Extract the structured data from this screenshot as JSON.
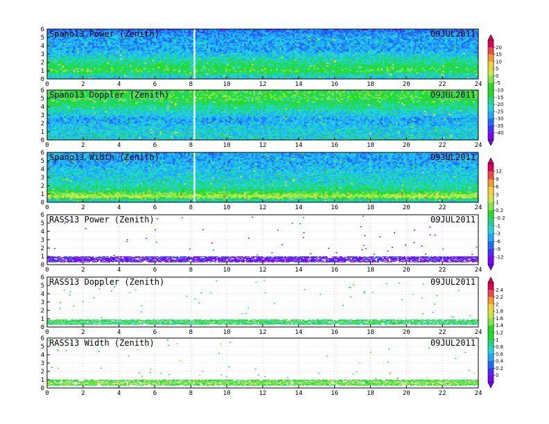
{
  "chart_data": [
    {
      "type": "heatmap",
      "title": "Spano13 Power (Zenith)",
      "date": "09JUL2011",
      "x_ticks": [
        "0",
        "2",
        "4",
        "6",
        "8",
        "10",
        "12",
        "14",
        "16",
        "18",
        "20",
        "22",
        "24"
      ],
      "y_ticks": [
        "0",
        "1",
        "2",
        "3",
        "4",
        "5",
        "6"
      ],
      "xlim": [
        0,
        24
      ],
      "ylim": [
        0,
        6
      ],
      "gap_hour": 8.2,
      "cover": [
        0,
        6
      ],
      "profile": [
        {
          "y": 0.3,
          "level": 4
        },
        {
          "y": 1.0,
          "level": 6
        },
        {
          "y": 2.0,
          "level": 5
        },
        {
          "y": 3.5,
          "level": 3
        },
        {
          "y": 5.0,
          "level": 3
        },
        {
          "y": 6.0,
          "level": 2
        }
      ],
      "colorbar": {
        "group": 1,
        "levels": [
          "20",
          "15",
          "10",
          "5",
          "0",
          "-5",
          "-10",
          "-15",
          "-20",
          "-25",
          "-30",
          "-35",
          "-40"
        ]
      }
    },
    {
      "type": "heatmap",
      "title": "Spano13 Doppler (Zenith)",
      "date": "09JUL2011",
      "x_ticks": [
        "0",
        "2",
        "4",
        "6",
        "8",
        "10",
        "12",
        "14",
        "16",
        "18",
        "20",
        "22",
        "24"
      ],
      "y_ticks": [
        "0",
        "1",
        "2",
        "3",
        "4",
        "5",
        "6"
      ],
      "xlim": [
        0,
        24
      ],
      "ylim": [
        0,
        6
      ],
      "gap_hour": 8.2,
      "cover": [
        0,
        6
      ],
      "profile": [
        {
          "y": 0.3,
          "level": 4
        },
        {
          "y": 1.0,
          "level": 4
        },
        {
          "y": 2.5,
          "level": 3
        },
        {
          "y": 4.0,
          "level": 5
        },
        {
          "y": 5.0,
          "level": 6
        },
        {
          "y": 6.0,
          "level": 6
        }
      ],
      "colorbar": {
        "group": 1,
        "levels": []
      }
    },
    {
      "type": "heatmap",
      "title": "Spano13 Width (Zenith)",
      "date": "09JUL2011",
      "x_ticks": [
        "0",
        "2",
        "4",
        "6",
        "8",
        "10",
        "12",
        "14",
        "16",
        "18",
        "20",
        "22",
        "24"
      ],
      "y_ticks": [
        "0",
        "1",
        "2",
        "3",
        "4",
        "5",
        "6"
      ],
      "xlim": [
        0,
        24
      ],
      "ylim": [
        0,
        6
      ],
      "gap_hour": 8.2,
      "cover": [
        0,
        6
      ],
      "profile": [
        {
          "y": 0.2,
          "level": 4
        },
        {
          "y": 0.7,
          "level": 8
        },
        {
          "y": 1.5,
          "level": 5
        },
        {
          "y": 3.0,
          "level": 4
        },
        {
          "y": 5.0,
          "level": 3
        },
        {
          "y": 6.0,
          "level": 3
        }
      ],
      "colorbar": {
        "group": 2,
        "levels": [
          "12",
          "9",
          "6",
          "3",
          "1",
          "0.2",
          "-0.2",
          "-1",
          "-3",
          "-6",
          "-9",
          "-12"
        ]
      }
    },
    {
      "type": "heatmap",
      "title": "RASS13 Power (Zenith)",
      "date": "09JUL2011",
      "x_ticks": [
        "0",
        "2",
        "4",
        "6",
        "8",
        "10",
        "12",
        "14",
        "16",
        "18",
        "20",
        "22",
        "24"
      ],
      "y_ticks": [
        "0",
        "1",
        "2",
        "3",
        "4",
        "5",
        "6"
      ],
      "xlim": [
        0,
        24
      ],
      "ylim": [
        0,
        6
      ],
      "gap_hour": null,
      "cover": [
        0.3,
        1.0
      ],
      "profile": [
        {
          "y": 0.3,
          "level": 1
        },
        {
          "y": 0.6,
          "level": 0
        },
        {
          "y": 1.0,
          "level": 1
        }
      ],
      "colorbar": {
        "group": 2,
        "levels": []
      }
    },
    {
      "type": "heatmap",
      "title": "RASS13 Doppler (Zenith)",
      "date": "09JUL2011",
      "x_ticks": [
        "0",
        "2",
        "4",
        "6",
        "8",
        "10",
        "12",
        "14",
        "16",
        "18",
        "20",
        "22",
        "24"
      ],
      "y_ticks": [
        "0",
        "1",
        "2",
        "3",
        "4",
        "5",
        "6"
      ],
      "xlim": [
        0,
        24
      ],
      "ylim": [
        0,
        6
      ],
      "gap_hour": null,
      "cover": [
        0.3,
        0.9
      ],
      "profile": [
        {
          "y": 0.3,
          "level": 5
        },
        {
          "y": 0.6,
          "level": 6
        },
        {
          "y": 0.9,
          "level": 5
        }
      ],
      "colorbar": {
        "group": 3,
        "levels": [
          "2.4",
          "2.2",
          "2",
          "1.8",
          "1.6",
          "1.4",
          "1.2",
          "1",
          "0.8",
          "0.6",
          "0.4",
          "0.2",
          "0"
        ]
      }
    },
    {
      "type": "heatmap",
      "title": "RASS13 Width (Zenith)",
      "date": "09JUL2011",
      "x_ticks": [
        "0",
        "2",
        "4",
        "6",
        "8",
        "10",
        "12",
        "14",
        "16",
        "18",
        "20",
        "22",
        "24"
      ],
      "y_ticks": [
        "0",
        "1",
        "2",
        "3",
        "4",
        "5",
        "6"
      ],
      "xlim": [
        0,
        24
      ],
      "ylim": [
        0,
        6
      ],
      "gap_hour": null,
      "cover": [
        0.3,
        1.0
      ],
      "profile": [
        {
          "y": 0.3,
          "level": 6
        },
        {
          "y": 0.6,
          "level": 7
        },
        {
          "y": 1.0,
          "level": 6
        }
      ],
      "colorbar": {
        "group": 3,
        "levels": []
      }
    }
  ],
  "palette": [
    "#7f00ff",
    "#4b2cff",
    "#1e6bff",
    "#1fa8ff",
    "#1fd5d5",
    "#1fd58c",
    "#22dd22",
    "#7fe64b",
    "#cfe64b",
    "#f2d23c",
    "#f29a2e",
    "#f04646",
    "#e0005a"
  ]
}
